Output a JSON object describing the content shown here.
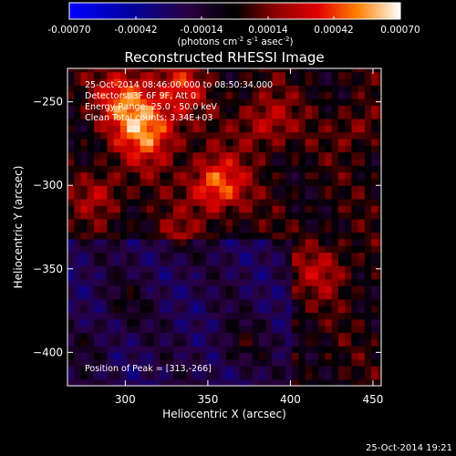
{
  "chart_data": {
    "type": "heatmap",
    "title": "Reconstructed RHESSI Image",
    "xlabel": "Heliocentric X (arcsec)",
    "ylabel": "Heliocentric Y (arcsec)",
    "xlim": [
      265,
      455
    ],
    "ylim": [
      -420,
      -230
    ],
    "x_ticks": [
      300,
      350,
      400,
      450
    ],
    "y_ticks": [
      -250,
      -300,
      -350,
      -400
    ],
    "colorbar": {
      "range": [
        -0.0007,
        0.0007
      ],
      "ticks": [
        "-0.00070",
        "-0.00042",
        "-0.00014",
        "0.00014",
        "0.00042",
        "0.00070"
      ],
      "label_parts": [
        "(photons cm",
        "-2",
        " s",
        "-1",
        " asec",
        "-2",
        ")"
      ]
    },
    "info_lines": [
      "25-Oct-2014 08:46:00.000 to 08:50:34.000",
      "Detectors: 3F 6F 9F, Att 0",
      "Energy Range: 25.0 - 50.0 keV",
      "Clean    Total counts: 3.34E+03"
    ],
    "peak_label": "Position of Peak = [313,-266]",
    "peak": [
      313,
      -266
    ],
    "timestamp": "25-Oct-2014 19:21",
    "grid": false,
    "pixel_size_arcsec": 4
  }
}
